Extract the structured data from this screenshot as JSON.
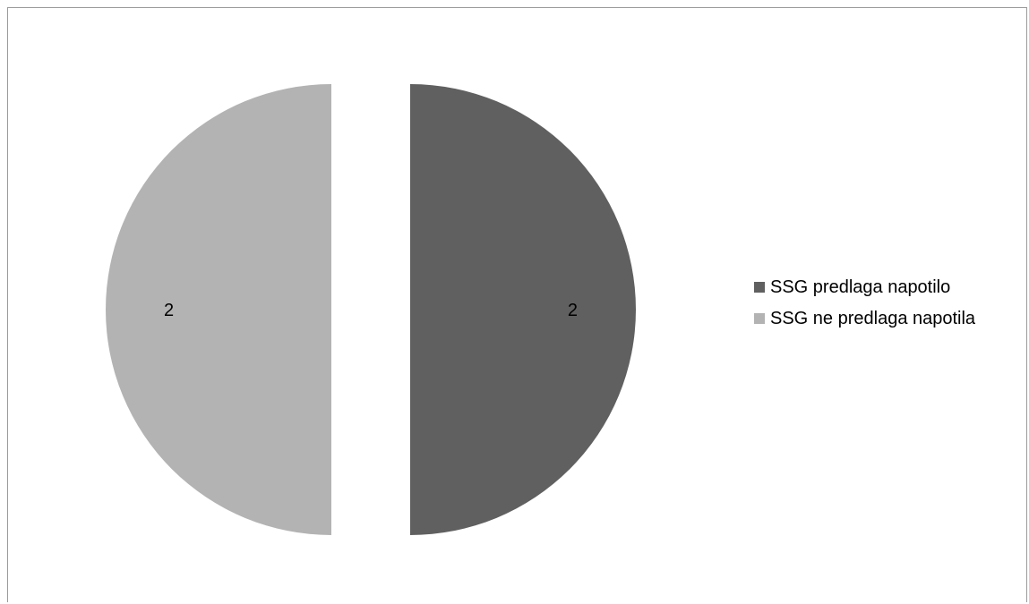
{
  "chart_data": {
    "type": "pie",
    "categories": [
      "SSG predlaga napotilo",
      "SSG ne predlaga napotila"
    ],
    "values": [
      2,
      2
    ],
    "data_labels": [
      "2",
      "2"
    ],
    "colors": [
      "#606060",
      "#b3b3b3"
    ],
    "exploded": true,
    "legend_position": "right",
    "title": ""
  }
}
